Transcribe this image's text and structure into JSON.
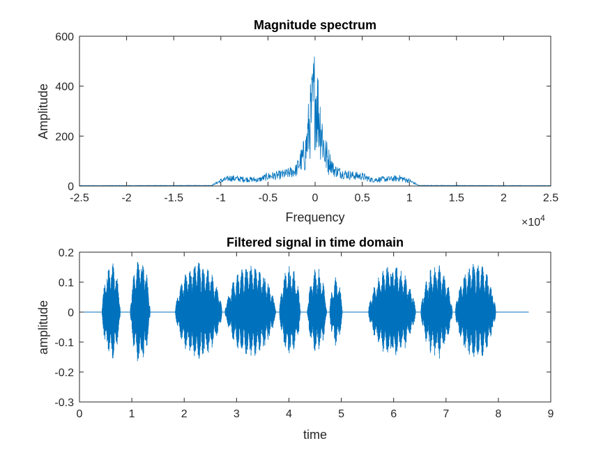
{
  "chart_data": [
    {
      "type": "line",
      "title": "Magnitude spectrum",
      "xlabel": "Frequency",
      "ylabel": "Amplitude",
      "xlim": [
        -25000,
        25000
      ],
      "ylim": [
        0,
        600
      ],
      "x_ticks": [
        -25000,
        -20000,
        -15000,
        -10000,
        -5000,
        0,
        5000,
        10000,
        15000,
        20000,
        25000
      ],
      "x_tick_labels": [
        "-2.5",
        "-2",
        "-1.5",
        "-1",
        "-0.5",
        "0",
        "0.5",
        "1",
        "1.5",
        "2",
        "2.5"
      ],
      "y_ticks": [
        0,
        200,
        400,
        600
      ],
      "y_tick_labels": [
        "0",
        "200",
        "400",
        "600"
      ],
      "x_exponent_label": "×10",
      "x_exponent_power": "4",
      "series_color": "#0072BD",
      "envelope": {
        "x": [
          -25000,
          -11000,
          -10000,
          -9000,
          -8000,
          -7000,
          -6000,
          -5000,
          -4000,
          -3000,
          -2000,
          -1500,
          -1000,
          -700,
          -400,
          -200,
          -50,
          0,
          50,
          200,
          400,
          700,
          1000,
          1500,
          2000,
          3000,
          4000,
          5000,
          6000,
          7000,
          8000,
          9000,
          10000,
          11000,
          25000
        ],
        "y": [
          2,
          3,
          30,
          45,
          40,
          38,
          35,
          55,
          60,
          70,
          90,
          150,
          220,
          350,
          450,
          530,
          570,
          570,
          570,
          530,
          450,
          350,
          220,
          150,
          90,
          70,
          60,
          55,
          35,
          38,
          40,
          45,
          30,
          3,
          2
        ]
      }
    },
    {
      "type": "line",
      "title": "Filtered signal in time domain",
      "xlabel": "time",
      "ylabel": "amplitude",
      "xlim": [
        0,
        9
      ],
      "ylim": [
        -0.3,
        0.2
      ],
      "x_ticks": [
        0,
        1,
        2,
        3,
        4,
        5,
        6,
        7,
        8,
        9
      ],
      "x_tick_labels": [
        "0",
        "1",
        "2",
        "3",
        "4",
        "5",
        "6",
        "7",
        "8",
        "9"
      ],
      "y_ticks": [
        -0.3,
        -0.2,
        -0.1,
        0,
        0.1,
        0.2
      ],
      "y_tick_labels": [
        "-0.3",
        "-0.2",
        "-0.1",
        "0",
        "0.1",
        "0.2"
      ],
      "series_color": "#0072BD",
      "signal_range": [
        0,
        8.58
      ],
      "bursts": [
        {
          "start": 0.43,
          "end": 0.78,
          "amp": 0.17
        },
        {
          "start": 0.97,
          "end": 1.35,
          "amp": 0.19
        },
        {
          "start": 1.83,
          "end": 2.72,
          "amp": 0.17
        },
        {
          "start": 2.78,
          "end": 3.75,
          "amp": 0.16
        },
        {
          "start": 3.82,
          "end": 4.22,
          "amp": 0.16
        },
        {
          "start": 4.35,
          "end": 4.72,
          "amp": 0.15
        },
        {
          "start": 4.78,
          "end": 5.02,
          "amp": 0.12
        },
        {
          "start": 5.52,
          "end": 6.42,
          "amp": 0.16
        },
        {
          "start": 6.52,
          "end": 7.12,
          "amp": 0.16
        },
        {
          "start": 7.18,
          "end": 7.95,
          "amp": 0.17
        }
      ]
    }
  ]
}
